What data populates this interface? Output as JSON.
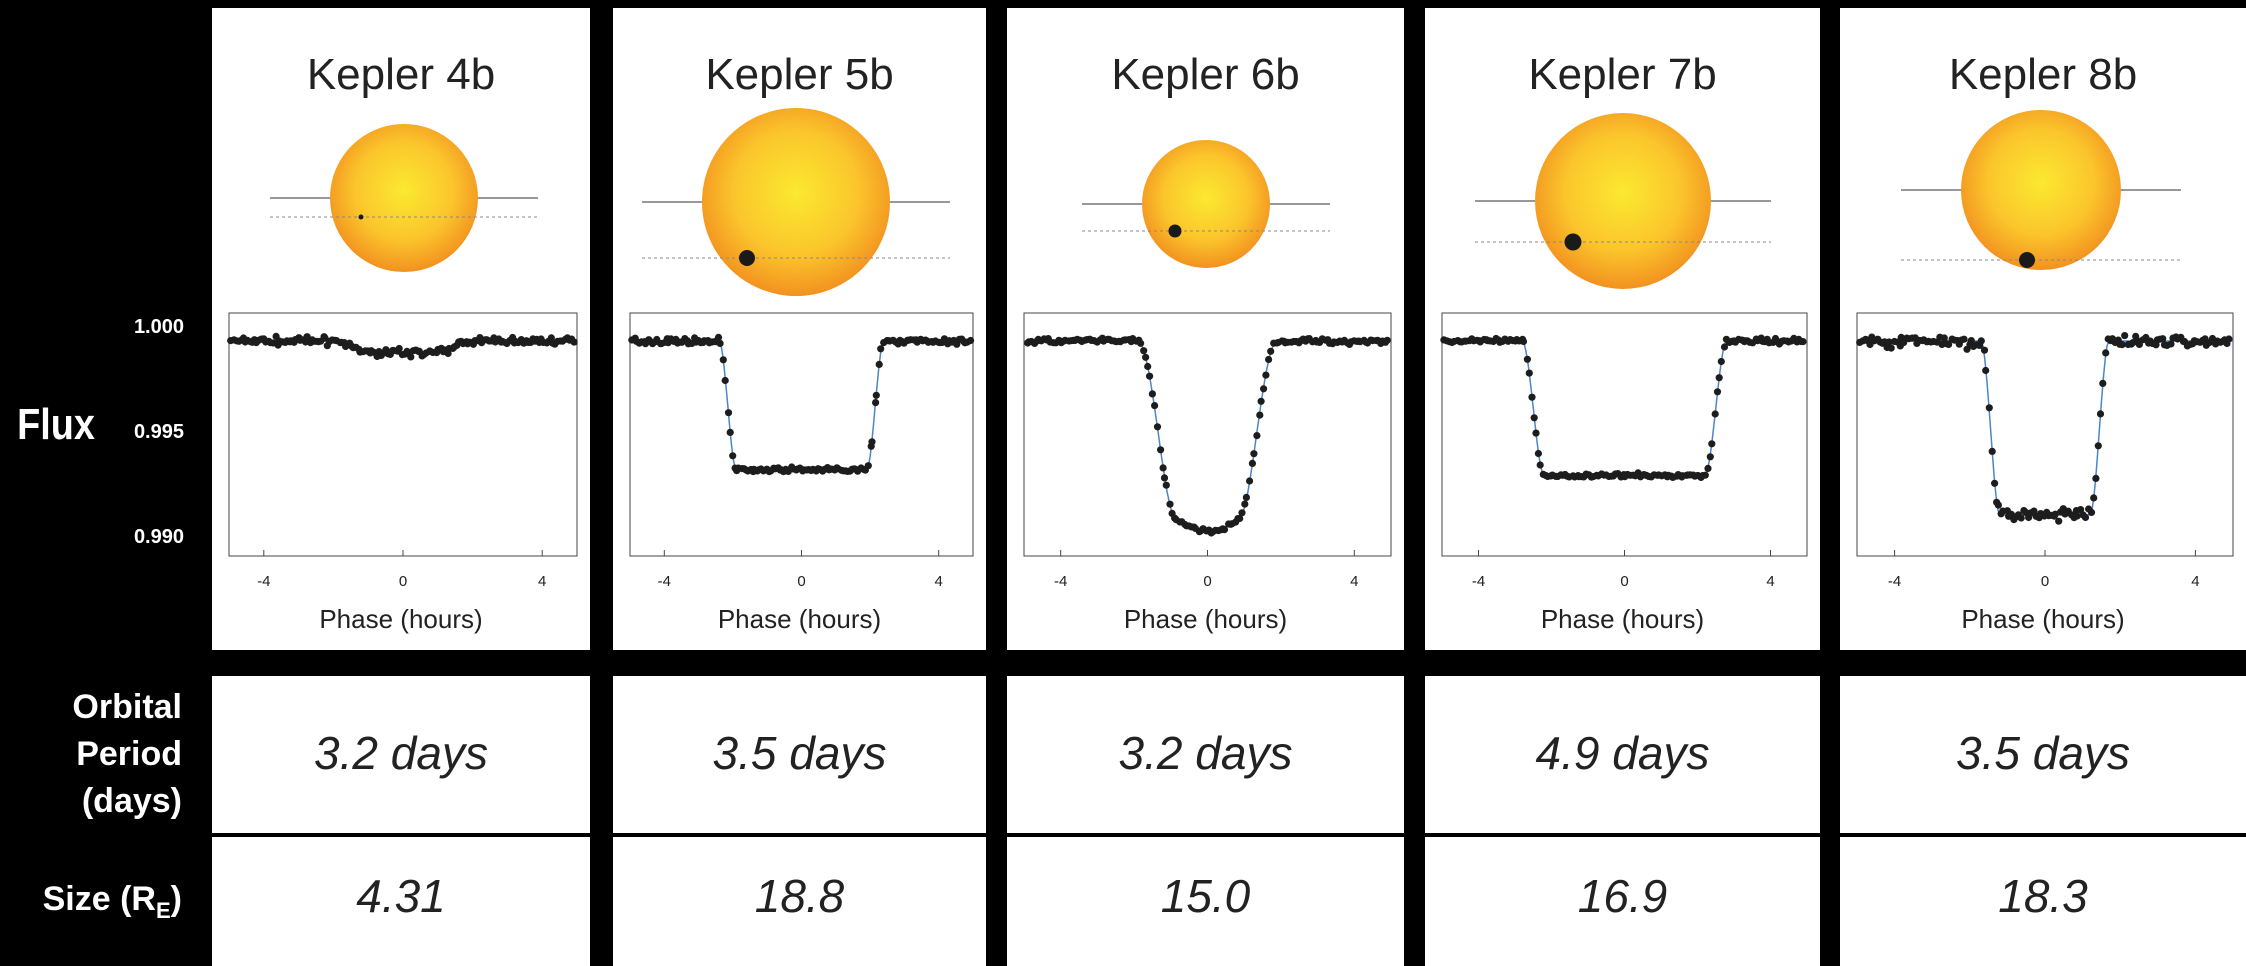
{
  "y_axis": {
    "label": "Flux",
    "ticks": [
      "1.000",
      "0.995",
      "0.990"
    ]
  },
  "row_labels": {
    "period": [
      "Orbital",
      "Period",
      "(days)"
    ],
    "size_main": "Size (R",
    "size_sub": "E",
    "size_close": ")"
  },
  "colors": {
    "star_core": "#fbe930",
    "star_edge": "#f29220",
    "points": "#1d1d1d",
    "fit_line": "#4a86c8"
  },
  "chart_data": {
    "type": "scatter",
    "xlabel": "Phase (hours)",
    "ylabel": "Flux",
    "x_ticks": [
      "-4",
      "0",
      "4"
    ],
    "xlim": [
      -5,
      5
    ],
    "ylim": [
      0.9885,
      1.0015
    ],
    "panels": [
      {
        "title": "Kepler 4b",
        "period": "3.2 days",
        "size": "4.31",
        "depth": 0.0006,
        "half_width": 1.8,
        "ingress": 0.6,
        "shape": "flat",
        "scatter": 0.00018
      },
      {
        "title": "Kepler 5b",
        "period": "3.5 days",
        "size": "18.8",
        "depth": 0.0069,
        "half_width": 2.4,
        "ingress": 0.5,
        "shape": "flat",
        "scatter": 0.00014
      },
      {
        "title": "Kepler 6b",
        "period": "3.2 days",
        "size": "15.0",
        "depth": 0.0102,
        "half_width": 1.9,
        "ingress": 1.0,
        "shape": "round",
        "scatter": 0.00014
      },
      {
        "title": "Kepler 7b",
        "period": "4.9 days",
        "size": "16.9",
        "depth": 0.0072,
        "half_width": 2.8,
        "ingress": 0.6,
        "shape": "flat",
        "scatter": 0.00012
      },
      {
        "title": "Kepler 8b",
        "period": "3.5 days",
        "size": "18.3",
        "depth": 0.0093,
        "half_width": 1.7,
        "ingress": 0.5,
        "shape": "flat",
        "scatter": 0.00032
      }
    ]
  }
}
